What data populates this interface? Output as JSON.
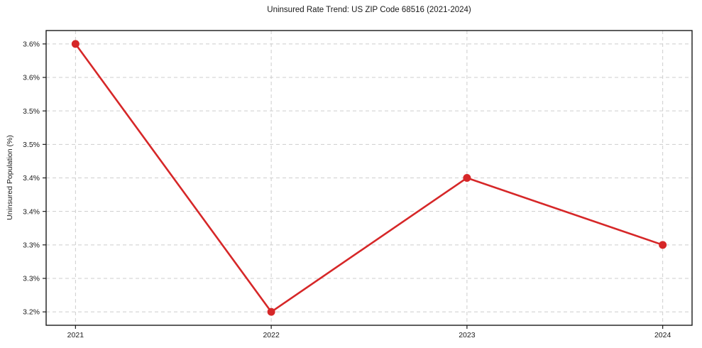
{
  "title": "Uninsured Rate Trend: US ZIP Code 68516 (2021-2024)",
  "chart_data": {
    "type": "line",
    "title": "Uninsured Rate Trend: US ZIP Code 68516 (2021-2024)",
    "xlabel": "",
    "ylabel": "Uninsured Population (%)",
    "categories": [
      "2021",
      "2022",
      "2023",
      "2024"
    ],
    "x": [
      2021,
      2022,
      2023,
      2024
    ],
    "values": [
      3.6,
      3.2,
      3.4,
      3.3
    ],
    "yticks": [
      3.6,
      3.55,
      3.5,
      3.45,
      3.4,
      3.35,
      3.3,
      3.25,
      3.2
    ],
    "ytick_labels": [
      "3.6%",
      "3.6%",
      "3.5%",
      "3.5%",
      "3.4%",
      "3.4%",
      "3.3%",
      "3.3%",
      "3.2%"
    ],
    "ylim": [
      3.18,
      3.62
    ],
    "xlim": [
      2020.85,
      2024.15
    ],
    "grid": true,
    "grid_style": "dashed",
    "legend": "none",
    "marker": "circle",
    "colors": {
      "line": "#d62728",
      "marker": "#d62728",
      "grid": "#cdcdcd",
      "axis": "#1a1a1a",
      "text": "#1a1a1a",
      "background": "#ffffff"
    }
  }
}
